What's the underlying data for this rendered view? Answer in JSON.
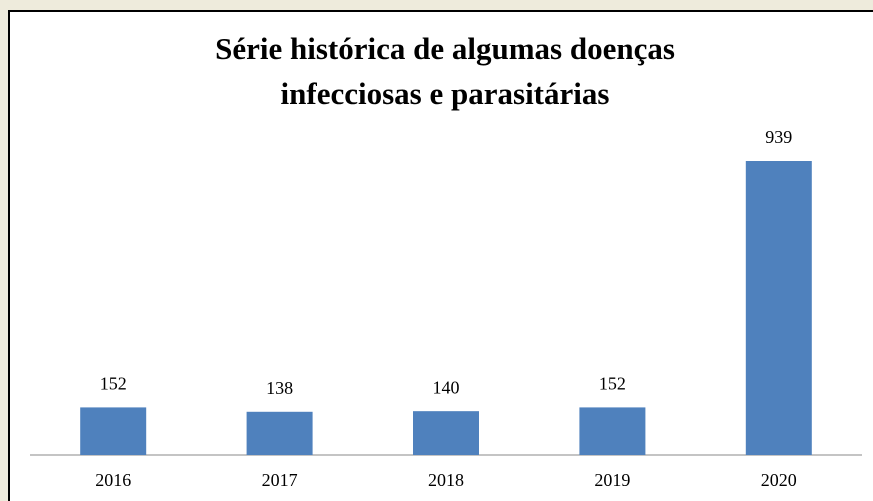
{
  "chart_data": {
    "type": "bar",
    "title": [
      "Série histórica de algumas doenças",
      "infecciosas e parasitárias"
    ],
    "categories": [
      "2016",
      "2017",
      "2018",
      "2019",
      "2020"
    ],
    "values": [
      152,
      138,
      140,
      152,
      939
    ],
    "color": "#4f81bd"
  }
}
